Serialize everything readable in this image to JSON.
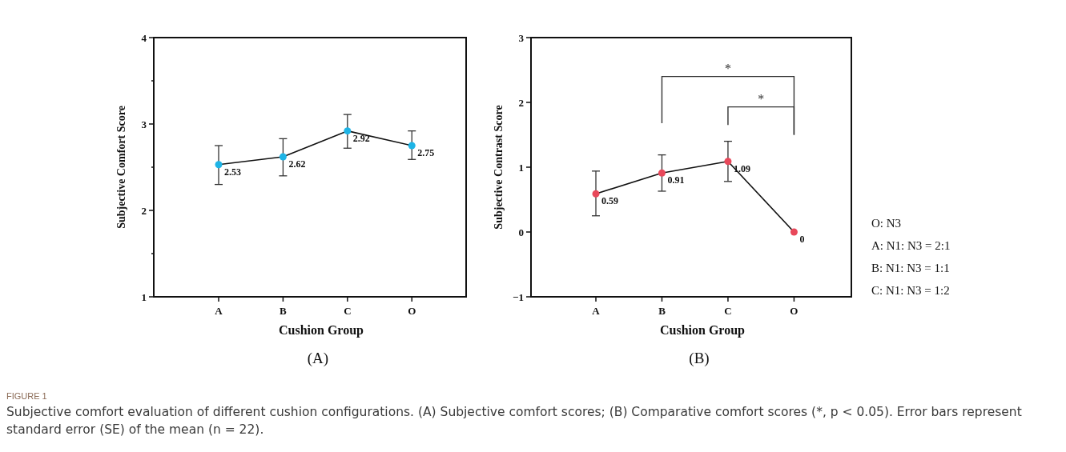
{
  "chart_data": [
    {
      "type": "line",
      "xlabel": "Cushion Group",
      "ylabel": "Subjective Comfort Score",
      "categories": [
        "A",
        "B",
        "C",
        "O"
      ],
      "series": [
        {
          "color": "#1eb4e6",
          "values": [
            2.53,
            2.62,
            2.92,
            2.75
          ],
          "errors": [
            [
              2.3,
              2.75
            ],
            [
              2.4,
              2.83
            ],
            [
              2.72,
              3.11
            ],
            [
              2.59,
              2.92
            ]
          ]
        }
      ],
      "ylim": [
        1,
        4
      ],
      "yticks": [
        1,
        {
          "value": 1.5,
          "label": null
        },
        2,
        {
          "value": 2.5,
          "label": null
        },
        3,
        {
          "value": 3.5,
          "label": null
        },
        4
      ],
      "marker": "circle",
      "data_labels": true,
      "annotations": [
        "(A)",
        "FIGURE 1",
        "Subjective comfort evaluation of different cushion configurations. (A) Subjective comfort scores; (B) Comparative comfort scores (*, p < 0.05). Error bars represent standard error (SE) of the mean (n = 22)."
      ]
    },
    {
      "type": "line",
      "xlabel": "Cushion Group",
      "ylabel": "Subjective Contrast Score",
      "categories": [
        "A",
        "B",
        "C",
        "O"
      ],
      "series": [
        {
          "color": "#e8485a",
          "values": [
            0.59,
            0.91,
            1.09,
            0
          ],
          "errors": [
            [
              0.25,
              0.94
            ],
            [
              0.63,
              1.19
            ],
            [
              0.78,
              1.4
            ],
            null
          ]
        }
      ],
      "ylim": [
        -1,
        3
      ],
      "yticks": [
        -1,
        0,
        1,
        2,
        3
      ],
      "marker": "circle",
      "data_labels": true,
      "annotations": [
        "*",
        "*",
        "O: N3",
        "A: N1: N3 = 2:1",
        "B: N1: N3 = 1:1",
        "C: N1: N3 = 1:2",
        "(B)"
      ]
    }
  ]
}
